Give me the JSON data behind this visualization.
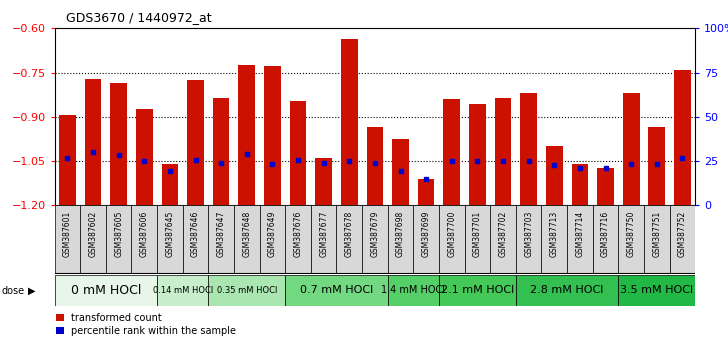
{
  "title": "GDS3670 / 1440972_at",
  "samples": [
    "GSM387601",
    "GSM387602",
    "GSM387605",
    "GSM387606",
    "GSM387645",
    "GSM387646",
    "GSM387647",
    "GSM387648",
    "GSM387649",
    "GSM387676",
    "GSM387677",
    "GSM387678",
    "GSM387679",
    "GSM387698",
    "GSM387699",
    "GSM387700",
    "GSM387701",
    "GSM387702",
    "GSM387703",
    "GSM387713",
    "GSM387714",
    "GSM387716",
    "GSM387750",
    "GSM387751",
    "GSM387752"
  ],
  "bar_values": [
    -0.895,
    -0.772,
    -0.785,
    -0.875,
    -1.06,
    -0.775,
    -0.835,
    -0.725,
    -0.728,
    -0.845,
    -1.04,
    -0.635,
    -0.935,
    -0.975,
    -1.11,
    -0.84,
    -0.855,
    -0.835,
    -0.82,
    -1.0,
    -1.06,
    -1.075,
    -0.82,
    -0.935,
    -0.74
  ],
  "percentile_values": [
    -1.04,
    -1.02,
    -1.03,
    -1.05,
    -1.085,
    -1.045,
    -1.055,
    -1.025,
    -1.06,
    -1.048,
    -1.055,
    -1.05,
    -1.055,
    -1.085,
    -1.11,
    -1.05,
    -1.05,
    -1.05,
    -1.05,
    -1.065,
    -1.072,
    -1.072,
    -1.06,
    -1.06,
    -1.04
  ],
  "dose_groups": [
    {
      "label": "0 mM HOCl",
      "start": 0,
      "end": 4,
      "color": "#e8f5e9",
      "fontsize": 9
    },
    {
      "label": "0.14 mM HOCl",
      "start": 4,
      "end": 6,
      "color": "#c8eecb",
      "fontsize": 6
    },
    {
      "label": "0.35 mM HOCl",
      "start": 6,
      "end": 9,
      "color": "#aae6b0",
      "fontsize": 6
    },
    {
      "label": "0.7 mM HOCl",
      "start": 9,
      "end": 13,
      "color": "#72d982",
      "fontsize": 8
    },
    {
      "label": "1.4 mM HOCl",
      "start": 13,
      "end": 15,
      "color": "#55cf68",
      "fontsize": 7
    },
    {
      "label": "2.1 mM HOCl",
      "start": 15,
      "end": 18,
      "color": "#44c858",
      "fontsize": 8
    },
    {
      "label": "2.8 mM HOCl",
      "start": 18,
      "end": 22,
      "color": "#33c050",
      "fontsize": 8
    },
    {
      "label": "3.5 mM HOCl",
      "start": 22,
      "end": 25,
      "color": "#22b845",
      "fontsize": 8
    }
  ],
  "ylim": [
    -1.2,
    -0.6
  ],
  "yticks_left": [
    -0.6,
    -0.75,
    -0.9,
    -1.05,
    -1.2
  ],
  "yticks_right_pct": [
    0,
    25,
    50,
    75,
    100
  ],
  "bar_color": "#cc1100",
  "dot_color": "#0000cc",
  "grid_color": "#000000",
  "bg_color": "#ffffff",
  "cell_bg": "#d8d8d8"
}
